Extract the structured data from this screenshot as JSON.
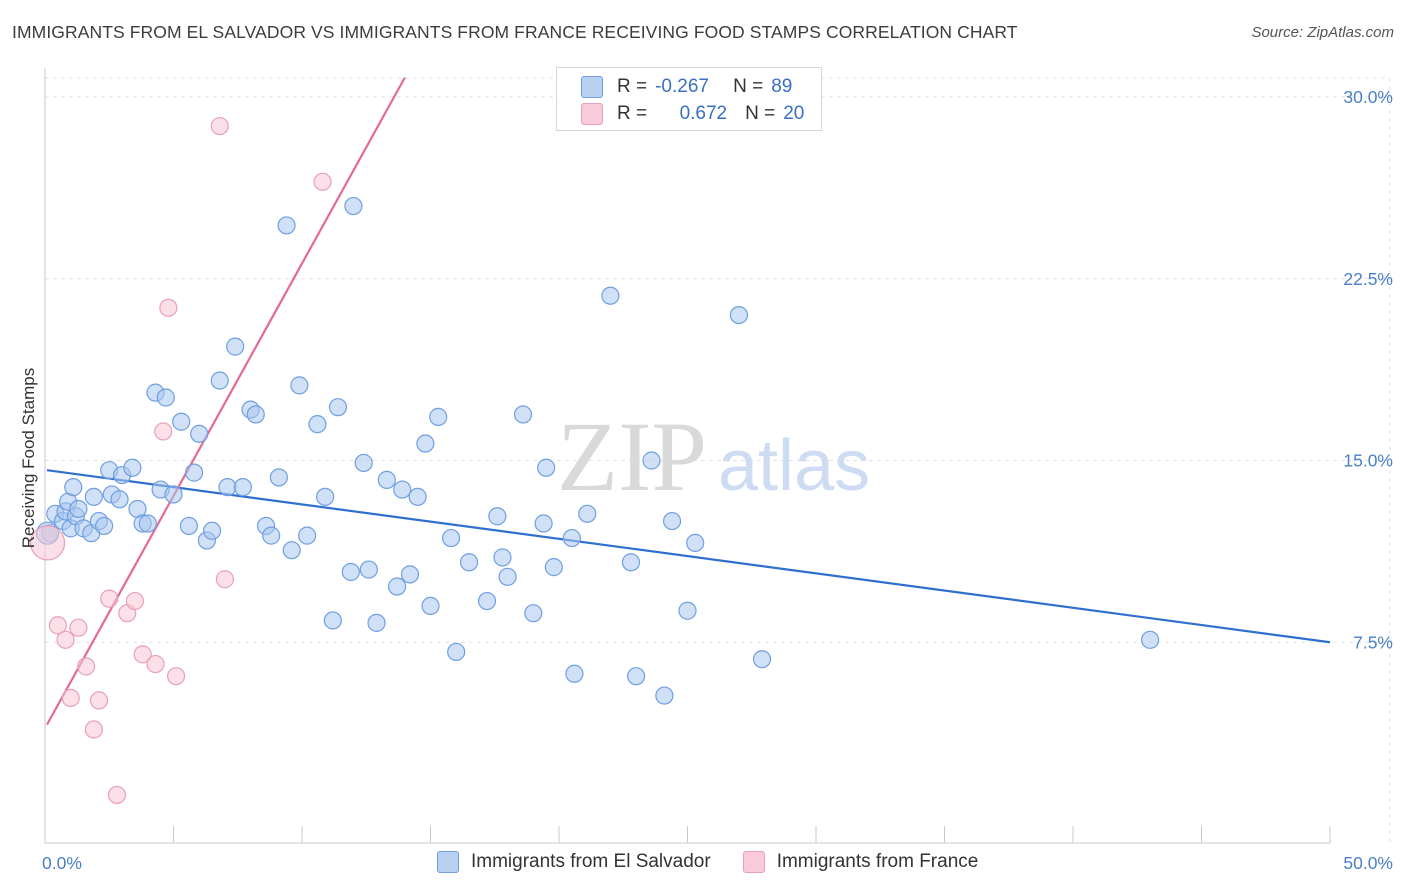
{
  "title": "IMMIGRANTS FROM EL SALVADOR VS IMMIGRANTS FROM FRANCE RECEIVING FOOD STAMPS CORRELATION CHART",
  "source": "Source: ZipAtlas.com",
  "watermark": {
    "zip": "ZIP",
    "atlas": "atlas"
  },
  "legend": {
    "rows": [
      {
        "r_label": "R =",
        "r_value": "-0.267",
        "n_label": "N =",
        "n_value": "89"
      },
      {
        "r_label": "R =",
        "r_value": "0.672",
        "n_label": "N =",
        "n_value": "20"
      }
    ]
  },
  "bottom_legend": [
    "Immigrants from El Salvador",
    "Immigrants from France"
  ],
  "chart_data": {
    "type": "scatter",
    "xlabel": "",
    "ylabel": "Receiving Food Stamps",
    "xlim": [
      0,
      50
    ],
    "ylim": [
      0,
      31
    ],
    "x_tick_labels": [
      {
        "value": 0,
        "label": "0.0%"
      },
      {
        "value": 50,
        "label": "50.0%"
      }
    ],
    "y_tick_labels": [
      {
        "value": 7.5,
        "label": "7.5%"
      },
      {
        "value": 15,
        "label": "15.0%"
      },
      {
        "value": 22.5,
        "label": "22.5%"
      },
      {
        "value": 30,
        "label": "30.0%"
      }
    ],
    "x_minor_ticks": [
      5,
      10,
      15,
      20,
      25,
      30,
      35,
      40,
      45,
      50
    ],
    "grid": true,
    "series": [
      {
        "name": "Immigrants from El Salvador",
        "color": "#6f9fe0",
        "fill": "#a9c7ef",
        "trend": {
          "x": [
            0,
            50
          ],
          "y": [
            14.6,
            7.5
          ],
          "color": "#2f6fd0"
        },
        "points": [
          [
            0.2,
            12.0
          ],
          [
            0.4,
            12.8
          ],
          [
            0.7,
            12.5
          ],
          [
            0.8,
            12.9
          ],
          [
            0.9,
            13.3
          ],
          [
            1.0,
            12.2
          ],
          [
            1.1,
            13.9
          ],
          [
            1.2,
            12.7
          ],
          [
            1.3,
            13.0
          ],
          [
            1.5,
            12.2
          ],
          [
            1.8,
            12.0
          ],
          [
            1.9,
            13.5
          ],
          [
            2.1,
            12.5
          ],
          [
            2.3,
            12.3
          ],
          [
            2.5,
            14.6
          ],
          [
            2.6,
            13.6
          ],
          [
            2.9,
            13.4
          ],
          [
            3.0,
            14.4
          ],
          [
            3.4,
            14.7
          ],
          [
            3.6,
            13.0
          ],
          [
            3.8,
            12.4
          ],
          [
            4.0,
            12.4
          ],
          [
            4.3,
            17.8
          ],
          [
            4.5,
            13.8
          ],
          [
            4.7,
            17.6
          ],
          [
            5.0,
            13.6
          ],
          [
            5.3,
            16.6
          ],
          [
            5.6,
            12.3
          ],
          [
            5.8,
            14.5
          ],
          [
            6.0,
            16.1
          ],
          [
            6.3,
            11.7
          ],
          [
            6.5,
            12.1
          ],
          [
            6.8,
            18.3
          ],
          [
            7.1,
            13.9
          ],
          [
            7.4,
            19.7
          ],
          [
            7.7,
            13.9
          ],
          [
            8.0,
            17.1
          ],
          [
            8.2,
            16.9
          ],
          [
            8.6,
            12.3
          ],
          [
            8.8,
            11.9
          ],
          [
            9.1,
            14.3
          ],
          [
            9.4,
            24.7
          ],
          [
            9.6,
            11.3
          ],
          [
            9.9,
            18.1
          ],
          [
            10.2,
            11.9
          ],
          [
            10.6,
            16.5
          ],
          [
            10.9,
            13.5
          ],
          [
            11.2,
            8.4
          ],
          [
            11.4,
            17.2
          ],
          [
            11.9,
            10.4
          ],
          [
            12.0,
            25.5
          ],
          [
            12.4,
            14.9
          ],
          [
            12.6,
            10.5
          ],
          [
            12.9,
            8.3
          ],
          [
            13.3,
            14.2
          ],
          [
            13.7,
            9.8
          ],
          [
            13.9,
            13.8
          ],
          [
            14.2,
            10.3
          ],
          [
            14.5,
            13.5
          ],
          [
            14.8,
            15.7
          ],
          [
            15.0,
            9.0
          ],
          [
            15.3,
            16.8
          ],
          [
            15.8,
            11.8
          ],
          [
            16.0,
            7.1
          ],
          [
            16.5,
            10.8
          ],
          [
            17.2,
            9.2
          ],
          [
            17.6,
            12.7
          ],
          [
            17.8,
            11.0
          ],
          [
            18.0,
            10.2
          ],
          [
            18.6,
            16.9
          ],
          [
            19.0,
            8.7
          ],
          [
            19.4,
            12.4
          ],
          [
            19.5,
            14.7
          ],
          [
            19.8,
            10.6
          ],
          [
            20.5,
            11.8
          ],
          [
            20.6,
            6.2
          ],
          [
            21.1,
            12.8
          ],
          [
            22.0,
            21.8
          ],
          [
            22.8,
            10.8
          ],
          [
            23.0,
            6.1
          ],
          [
            23.6,
            15.0
          ],
          [
            24.1,
            5.3
          ],
          [
            24.4,
            12.5
          ],
          [
            25.0,
            8.8
          ],
          [
            25.3,
            11.6
          ],
          [
            27.0,
            21.0
          ],
          [
            27.9,
            6.8
          ],
          [
            43.0,
            7.6
          ],
          [
            0.1,
            12.0
          ]
        ]
      },
      {
        "name": "Immigrants from France",
        "color": "#e8a0b6",
        "fill": "#f8c6d5",
        "trend": {
          "x": [
            0,
            14.0
          ],
          "y": [
            4.1,
            30.8
          ],
          "color": "#e46a93"
        },
        "points": [
          [
            0.1,
            11.6
          ],
          [
            0.5,
            8.2
          ],
          [
            0.8,
            7.6
          ],
          [
            1.0,
            5.2
          ],
          [
            1.3,
            8.1
          ],
          [
            1.6,
            6.5
          ],
          [
            1.9,
            3.9
          ],
          [
            2.1,
            5.1
          ],
          [
            2.5,
            9.3
          ],
          [
            2.8,
            1.2
          ],
          [
            3.2,
            8.7
          ],
          [
            3.5,
            9.2
          ],
          [
            3.8,
            7.0
          ],
          [
            4.3,
            6.6
          ],
          [
            4.6,
            16.2
          ],
          [
            4.8,
            21.3
          ],
          [
            5.1,
            6.1
          ],
          [
            6.8,
            28.8
          ],
          [
            7.0,
            10.1
          ],
          [
            10.8,
            26.5
          ]
        ]
      }
    ]
  }
}
